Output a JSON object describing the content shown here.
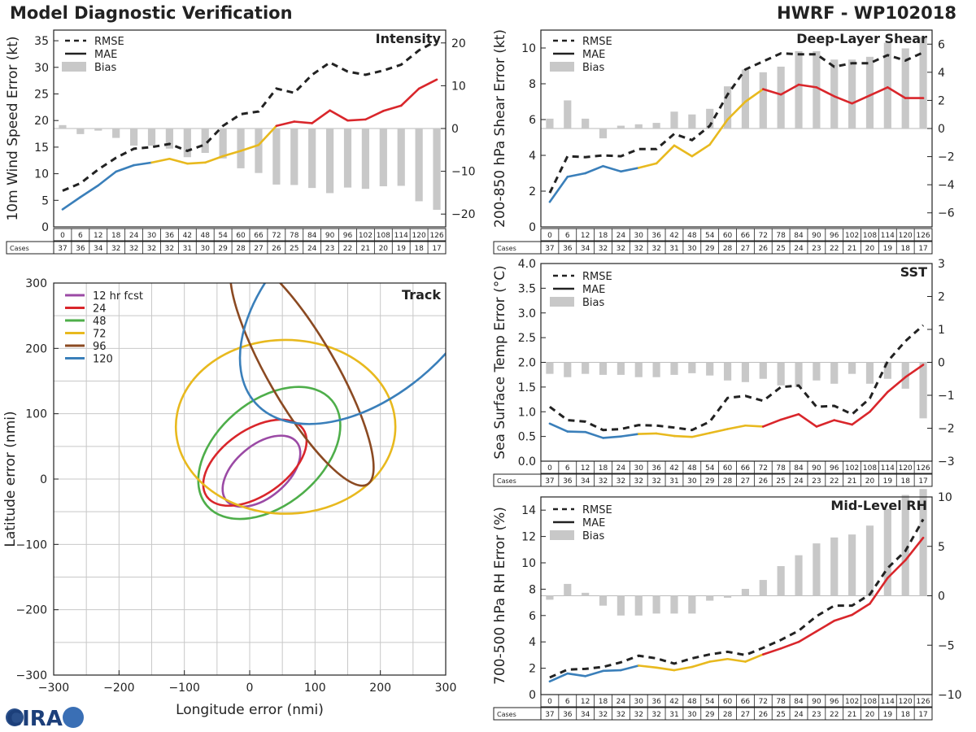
{
  "header": {
    "title": "Model Diagnostic Verification",
    "model": "HWRF - WP102018"
  },
  "colors": {
    "early": "#3a7fba",
    "mid": "#e8b91e",
    "late": "#d9262b",
    "rmse": "#222222",
    "bias": "#c8c8c8"
  },
  "forecast_hours": [
    "0",
    "6",
    "12",
    "18",
    "24",
    "30",
    "36",
    "42",
    "48",
    "54",
    "60",
    "66",
    "72",
    "78",
    "84",
    "90",
    "96",
    "102",
    "108",
    "114",
    "120",
    "126"
  ],
  "cases": [
    "37",
    "36",
    "34",
    "32",
    "32",
    "32",
    "32",
    "31",
    "30",
    "29",
    "28",
    "27",
    "26",
    "25",
    "24",
    "23",
    "22",
    "21",
    "20",
    "19",
    "18",
    "17"
  ],
  "cases_label": "Cases",
  "legend_labels": {
    "rmse": "RMSE",
    "mae": "MAE",
    "bias": "Bias"
  },
  "logo_text": "CIRA",
  "chart_data": [
    {
      "id": "intensity",
      "type": "line",
      "title": "Intensity",
      "ylabel": "10m Wind Speed Error (kt)",
      "ylim": [
        0,
        37
      ],
      "yticks": [
        0,
        5,
        10,
        15,
        20,
        25,
        30,
        35
      ],
      "y2lim": [
        -23,
        23
      ],
      "y2ticks": [
        -20,
        -10,
        0,
        10,
        20
      ],
      "rmse": [
        6.8,
        8.2,
        10.8,
        13.0,
        14.7,
        15.0,
        15.6,
        14.3,
        15.5,
        19.0,
        21.2,
        21.7,
        26.0,
        25.2,
        28.6,
        30.9,
        29.2,
        28.6,
        29.4,
        30.5,
        33.2,
        35.0
      ],
      "mae": [
        3.3,
        5.6,
        7.8,
        10.4,
        11.6,
        12.1,
        12.8,
        11.9,
        12.1,
        13.3,
        14.3,
        15.4,
        19.0,
        19.8,
        19.5,
        21.9,
        20.0,
        20.2,
        21.8,
        22.8,
        26.0,
        27.7
      ],
      "bias": [
        0.8,
        -1.3,
        -0.5,
        -2.2,
        -4.0,
        -4.0,
        -4.7,
        -6.7,
        -5.7,
        -7.0,
        -9.3,
        -10.4,
        -13.1,
        -13.2,
        -13.9,
        -15.1,
        -13.8,
        -14.1,
        -13.5,
        -13.4,
        -17.0,
        -19.0
      ]
    },
    {
      "id": "shear",
      "type": "line",
      "title": "Deep-Layer Shear",
      "ylabel": "200-850 hPa Shear Error (kt)",
      "ylim": [
        0,
        11
      ],
      "yticks": [
        0,
        2,
        4,
        6,
        8,
        10
      ],
      "y2lim": [
        -7,
        7
      ],
      "y2ticks": [
        -6,
        -4,
        -2,
        0,
        2,
        4,
        6
      ],
      "rmse": [
        1.9,
        3.95,
        3.9,
        4.0,
        3.95,
        4.35,
        4.35,
        5.2,
        4.85,
        5.65,
        7.4,
        8.8,
        9.25,
        9.7,
        9.65,
        9.65,
        8.95,
        9.15,
        9.15,
        9.6,
        9.3,
        9.75
      ],
      "mae": [
        1.4,
        2.8,
        3.0,
        3.4,
        3.1,
        3.3,
        3.55,
        4.55,
        3.95,
        4.6,
        6.0,
        7.0,
        7.7,
        7.4,
        7.95,
        7.8,
        7.3,
        6.9,
        7.35,
        7.8,
        7.2,
        7.2
      ],
      "bias": [
        0.7,
        2.0,
        0.7,
        -0.7,
        0.2,
        0.3,
        0.4,
        1.2,
        1.0,
        1.4,
        3.0,
        4.2,
        4.0,
        4.4,
        5.5,
        5.5,
        4.9,
        4.9,
        5.1,
        6.1,
        5.7,
        6.5
      ]
    },
    {
      "id": "sst",
      "type": "line",
      "title": "SST",
      "ylabel": "Sea Surface Temp Error (°C)",
      "ylim": [
        0,
        4
      ],
      "yticks": [
        "0.0",
        "0.5",
        "1.0",
        "1.5",
        "2.0",
        "2.5",
        "3.0",
        "3.5",
        "4.0"
      ],
      "y2lim": [
        -3,
        3
      ],
      "y2ticks": [
        -3,
        -2,
        -1,
        0,
        1,
        2,
        3
      ],
      "rmse": [
        1.1,
        0.83,
        0.8,
        0.63,
        0.65,
        0.73,
        0.72,
        0.68,
        0.63,
        0.8,
        1.28,
        1.32,
        1.22,
        1.5,
        1.53,
        1.1,
        1.12,
        0.95,
        1.27,
        2.02,
        2.43,
        2.75
      ],
      "mae": [
        0.76,
        0.6,
        0.59,
        0.47,
        0.5,
        0.55,
        0.56,
        0.51,
        0.49,
        0.57,
        0.65,
        0.72,
        0.7,
        0.84,
        0.95,
        0.7,
        0.83,
        0.74,
        1.0,
        1.4,
        1.7,
        1.95
      ],
      "bias": [
        -0.35,
        -0.45,
        -0.35,
        -0.38,
        -0.38,
        -0.45,
        -0.45,
        -0.38,
        -0.33,
        -0.4,
        -0.55,
        -0.6,
        -0.5,
        -0.7,
        -0.75,
        -0.55,
        -0.65,
        -0.35,
        -0.65,
        -0.5,
        -0.8,
        -1.7
      ]
    },
    {
      "id": "rh",
      "type": "line",
      "title": "Mid-Level RH",
      "ylabel": "700-500 hPa RH Error (%)",
      "ylim": [
        0,
        15
      ],
      "yticks": [
        0,
        2,
        4,
        6,
        8,
        10,
        12,
        14
      ],
      "y2lim": [
        -10,
        10
      ],
      "y2ticks": [
        -10,
        -5,
        0,
        5,
        10
      ],
      "rmse": [
        1.3,
        1.9,
        1.95,
        2.1,
        2.45,
        2.95,
        2.75,
        2.35,
        2.75,
        3.05,
        3.25,
        3.0,
        3.55,
        4.15,
        4.85,
        5.95,
        6.75,
        6.75,
        7.6,
        9.6,
        10.9,
        13.3
      ],
      "mae": [
        1.0,
        1.6,
        1.4,
        1.8,
        1.85,
        2.2,
        2.05,
        1.85,
        2.1,
        2.5,
        2.7,
        2.5,
        3.05,
        3.5,
        4.0,
        4.8,
        5.6,
        6.05,
        6.9,
        8.85,
        10.2,
        11.9
      ],
      "bias": [
        -0.4,
        1.2,
        0.3,
        -1.0,
        -2.0,
        -2.0,
        -1.8,
        -1.8,
        -1.8,
        -0.5,
        -0.2,
        0.7,
        1.6,
        3.0,
        4.1,
        5.3,
        5.9,
        6.2,
        7.1,
        8.8,
        10.2,
        10.8
      ]
    },
    {
      "id": "track",
      "type": "scatter",
      "title": "Track",
      "xlabel": "Longitude error (nmi)",
      "ylabel": "Latitude error (nmi)",
      "xlim": [
        -300,
        300
      ],
      "ylim": [
        -300,
        300
      ],
      "xticks": [
        -300,
        -200,
        -100,
        0,
        100,
        200,
        300
      ],
      "yticks": [
        -300,
        -200,
        -100,
        0,
        100,
        200,
        300
      ],
      "ellipses": [
        {
          "label": "12 hr fcst",
          "color": "#9b4aa5",
          "cx": 18,
          "cy": 12,
          "rx": 70,
          "ry": 40,
          "angle": 40
        },
        {
          "label": "24",
          "color": "#d9262b",
          "cx": 8,
          "cy": 25,
          "rx": 90,
          "ry": 50,
          "angle": 35
        },
        {
          "label": "48",
          "color": "#4eae4a",
          "cx": 30,
          "cy": 40,
          "rx": 125,
          "ry": 80,
          "angle": 40
        },
        {
          "label": "72",
          "color": "#e8b91e",
          "cx": 55,
          "cy": 80,
          "rx": 168,
          "ry": 133,
          "angle": 0
        },
        {
          "label": "96",
          "color": "#8b4a22",
          "cx": 80,
          "cy": 165,
          "rx": 200,
          "ry": 52,
          "angle": -60
        },
        {
          "label": "120",
          "color": "#3a7fba",
          "cx": 180,
          "cy": 270,
          "rx": 230,
          "ry": 140,
          "angle": 42
        }
      ]
    }
  ]
}
